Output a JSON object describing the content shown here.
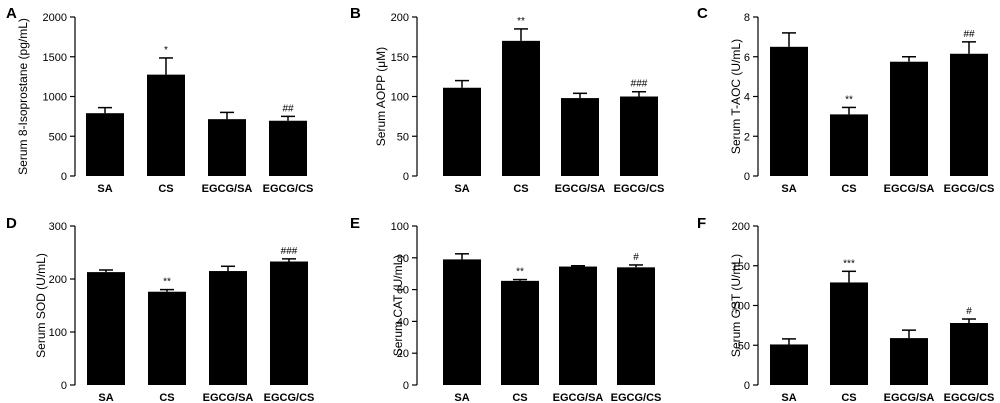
{
  "chart_data": [
    {
      "type": "bar",
      "panel_letter": "A",
      "ylabel": "Serum 8-Isoprostane (pg/mL)",
      "categories": [
        "SA",
        "CS",
        "EGCG/SA",
        "EGCG/CS"
      ],
      "values": [
        790,
        1275,
        715,
        695
      ],
      "errors": [
        70,
        210,
        85,
        55
      ],
      "significance": [
        "",
        "*",
        "",
        "##"
      ],
      "ylim": [
        0,
        2000
      ],
      "yticks": [
        "0",
        "500",
        "1000",
        "1500",
        "2000"
      ],
      "ytick_values": [
        0,
        500,
        1000,
        1500,
        2000
      ],
      "bar_color": "#000000"
    },
    {
      "type": "bar",
      "panel_letter": "B",
      "ylabel": "Serum AOPP (μM)",
      "categories": [
        "SA",
        "CS",
        "EGCG/SA",
        "EGCG/CS"
      ],
      "values": [
        111,
        170,
        98,
        100
      ],
      "errors": [
        9,
        15,
        6,
        6
      ],
      "significance": [
        "",
        "**",
        "",
        "###"
      ],
      "ylim": [
        0,
        200
      ],
      "yticks": [
        "0",
        "50",
        "100",
        "150",
        "200"
      ],
      "ytick_values": [
        0,
        50,
        100,
        150,
        200
      ],
      "bar_color": "#000000"
    },
    {
      "type": "bar",
      "panel_letter": "C",
      "ylabel": "Serum T-AOC (U/mL)",
      "categories": [
        "SA",
        "CS",
        "EGCG/SA",
        "EGCG/CS"
      ],
      "values": [
        6.5,
        3.1,
        5.75,
        6.15
      ],
      "errors": [
        0.7,
        0.35,
        0.25,
        0.6
      ],
      "significance": [
        "",
        "**",
        "",
        "##"
      ],
      "ylim": [
        0,
        8
      ],
      "yticks": [
        "0",
        "2",
        "4",
        "6",
        "8"
      ],
      "ytick_values": [
        0,
        2,
        4,
        6,
        8
      ],
      "bar_color": "#000000"
    },
    {
      "type": "bar",
      "panel_letter": "D",
      "ylabel": "Serum SOD (U/mL)",
      "categories": [
        "SA",
        "CS",
        "EGCG/SA",
        "EGCG/CS"
      ],
      "values": [
        213,
        176,
        215,
        233
      ],
      "errors": [
        4,
        4,
        9,
        5
      ],
      "significance": [
        "",
        "**",
        "",
        "###"
      ],
      "ylim": [
        0,
        300
      ],
      "yticks": [
        "0",
        "100",
        "200",
        "300"
      ],
      "ytick_values": [
        0,
        100,
        200,
        300
      ],
      "bar_color": "#000000"
    },
    {
      "type": "bar",
      "panel_letter": "E",
      "ylabel": "Serum CAT (U/mL)",
      "categories": [
        "SA",
        "CS",
        "EGCG/SA",
        "EGCG/CS"
      ],
      "values": [
        79,
        65.5,
        74.5,
        74
      ],
      "errors": [
        3.5,
        0.8,
        0.5,
        1.5
      ],
      "significance": [
        "",
        "**",
        "",
        "#"
      ],
      "ylim": [
        0,
        100
      ],
      "yticks": [
        "0",
        "20",
        "40",
        "60",
        "80",
        "100"
      ],
      "ytick_values": [
        0,
        20,
        40,
        60,
        80,
        100
      ],
      "bar_color": "#000000"
    },
    {
      "type": "bar",
      "panel_letter": "F",
      "ylabel": "Serum GST (U/mL)",
      "categories": [
        "SA",
        "CS",
        "EGCG/SA",
        "EGCG/CS"
      ],
      "values": [
        51,
        129,
        59,
        78
      ],
      "errors": [
        7,
        14,
        10,
        5
      ],
      "significance": [
        "",
        "***",
        "",
        "#"
      ],
      "ylim": [
        0,
        200
      ],
      "yticks": [
        "0",
        "50",
        "100",
        "150",
        "200"
      ],
      "ytick_values": [
        0,
        50,
        100,
        150,
        200
      ],
      "bar_color": "#000000"
    }
  ]
}
